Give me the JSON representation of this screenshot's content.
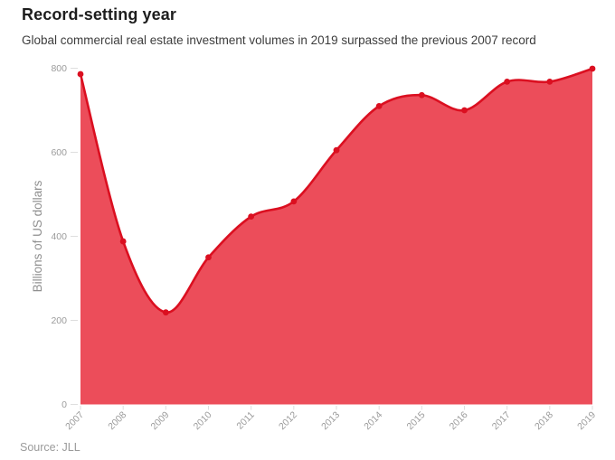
{
  "header": {
    "title": "Record-setting year",
    "subtitle": "Global commercial real estate investment volumes in 2019 surpassed the previous 2007 record"
  },
  "footer": {
    "source": "Source: JLL"
  },
  "chart_data": {
    "type": "area",
    "title": "Record-setting year",
    "subtitle": "Global commercial real estate investment volumes in 2019 surpassed the previous 2007 record",
    "categories": [
      "2007",
      "2008",
      "2009",
      "2010",
      "2011",
      "2012",
      "2013",
      "2014",
      "2015",
      "2016",
      "2017",
      "2018",
      "2019"
    ],
    "values": [
      786,
      388,
      219,
      350,
      447,
      483,
      605,
      710,
      736,
      700,
      768,
      768,
      799
    ],
    "xlabel": "",
    "ylabel": "Billions of US dollars",
    "yticks": [
      0,
      200,
      400,
      600,
      800
    ],
    "ylim": [
      0,
      800
    ],
    "grid": false,
    "legend": false,
    "source": "Source: JLL",
    "colors": {
      "area_fill": "#ec4d5a",
      "line": "#db0f20",
      "point": "#db0f20",
      "axis_text": "#9b9b9b",
      "axis_title_text": "#8f8f8f",
      "tick_mark": "#dedede",
      "title_text": "#1d1d1d",
      "subtitle_text": "#3d3d3d"
    }
  }
}
